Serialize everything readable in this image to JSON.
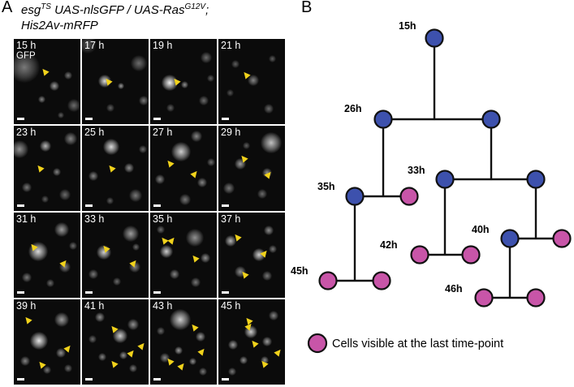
{
  "panel_a": {
    "letter": "A",
    "genotype_line1_a": "esg",
    "genotype_line1_sup1": "TS",
    "genotype_line1_b": " UAS-nlsGFP / UAS-Ras",
    "genotype_line1_sup2": "G12V",
    "genotype_line1_c": ";",
    "genotype_line2": "His2Av-mRFP",
    "channel_label": "GFP",
    "frames": [
      {
        "time": "15 h",
        "arrows": 1
      },
      {
        "time": "17 h",
        "arrows": 1
      },
      {
        "time": "19 h",
        "arrows": 1
      },
      {
        "time": "21 h",
        "arrows": 1
      },
      {
        "time": "23 h",
        "arrows": 1
      },
      {
        "time": "25 h",
        "arrows": 1
      },
      {
        "time": "27 h",
        "arrows": 2
      },
      {
        "time": "29 h",
        "arrows": 2
      },
      {
        "time": "31 h",
        "arrows": 2
      },
      {
        "time": "33 h",
        "arrows": 2
      },
      {
        "time": "35 h",
        "arrows": 3
      },
      {
        "time": "37 h",
        "arrows": 3
      },
      {
        "time": "39 h",
        "arrows": 3
      },
      {
        "time": "41 h",
        "arrows": 4
      },
      {
        "time": "43 h",
        "arrows": 4
      },
      {
        "time": "45 h",
        "arrows": 5
      }
    ],
    "colors": {
      "arrow": "#f1d21b",
      "scale_bar": "#ffffff"
    }
  },
  "panel_b": {
    "letter": "B",
    "node_labels": [
      "15h",
      "26h",
      "33h",
      "35h",
      "40h",
      "42h",
      "45h",
      "46h"
    ],
    "legend_text": "Cells visible at the last time-point",
    "colors": {
      "dividing_cell": "#3d51ad",
      "final_cell": "#c855a8",
      "outline": "#111111"
    }
  }
}
